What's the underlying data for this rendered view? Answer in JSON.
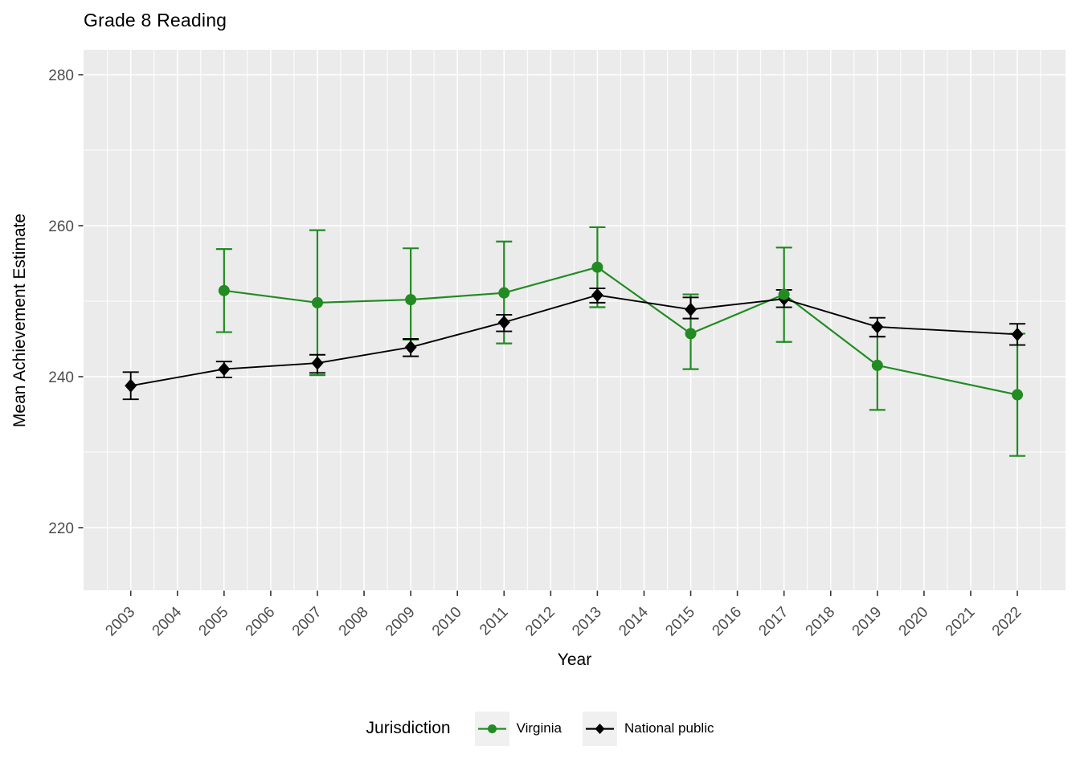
{
  "title": "Grade 8 Reading",
  "colors": {
    "virginia": "#228B22",
    "national_public": "#000000",
    "panel_background": "#EBEBEB",
    "gridline": "#FFFFFF",
    "tick_mark": "#333333",
    "tick_label": "#4D4D4D",
    "legend_key_background": "#F0F0F0"
  },
  "chart_data": {
    "type": "line",
    "title": "Grade 8 Reading",
    "xlabel": "Year",
    "ylabel": "Mean Achievement Estimate",
    "legend_title": "Jurisdiction",
    "legend_position": "bottom",
    "grid": true,
    "error_bars": true,
    "xlim": [
      2002.0,
      2023.0
    ],
    "ylim": [
      211.7,
      283.3
    ],
    "x_ticks": [
      2003,
      2004,
      2005,
      2006,
      2007,
      2008,
      2009,
      2010,
      2011,
      2012,
      2013,
      2014,
      2015,
      2016,
      2017,
      2018,
      2019,
      2020,
      2021,
      2022
    ],
    "y_ticks": [
      220,
      240,
      260,
      280
    ],
    "y_minor_ticks": [
      230,
      250,
      270
    ],
    "series": [
      {
        "name": "Virginia",
        "color": "#228B22",
        "marker": "circle",
        "points": [
          {
            "year": 2005,
            "value": 251.4,
            "ci": [
              245.9,
              256.9
            ]
          },
          {
            "year": 2007,
            "value": 249.8,
            "ci": [
              240.2,
              259.4
            ]
          },
          {
            "year": 2009,
            "value": 250.2,
            "ci": [
              244.9,
              257.0
            ]
          },
          {
            "year": 2011,
            "value": 251.1,
            "ci": [
              244.4,
              257.9
            ]
          },
          {
            "year": 2013,
            "value": 254.5,
            "ci": [
              249.2,
              259.8
            ]
          },
          {
            "year": 2015,
            "value": 245.7,
            "ci": [
              241.0,
              250.9
            ]
          },
          {
            "year": 2017,
            "value": 250.9,
            "ci": [
              244.6,
              257.1
            ]
          },
          {
            "year": 2019,
            "value": 241.5,
            "ci": [
              235.6,
              245.3
            ]
          },
          {
            "year": 2022,
            "value": 237.6,
            "ci": [
              229.5,
              245.7
            ]
          }
        ]
      },
      {
        "name": "National public",
        "color": "#000000",
        "marker": "diamond",
        "points": [
          {
            "year": 2003,
            "value": 238.8,
            "ci": [
              237.0,
              240.6
            ]
          },
          {
            "year": 2005,
            "value": 241.0,
            "ci": [
              239.9,
              242.0
            ]
          },
          {
            "year": 2007,
            "value": 241.8,
            "ci": [
              240.5,
              242.9
            ]
          },
          {
            "year": 2009,
            "value": 243.9,
            "ci": [
              242.7,
              245.0
            ]
          },
          {
            "year": 2011,
            "value": 247.2,
            "ci": [
              246.0,
              248.2
            ]
          },
          {
            "year": 2013,
            "value": 250.8,
            "ci": [
              249.8,
              251.7
            ]
          },
          {
            "year": 2015,
            "value": 248.9,
            "ci": [
              247.7,
              250.5
            ]
          },
          {
            "year": 2017,
            "value": 250.3,
            "ci": [
              249.2,
              251.5
            ]
          },
          {
            "year": 2019,
            "value": 246.6,
            "ci": [
              245.3,
              247.8
            ]
          },
          {
            "year": 2022,
            "value": 245.6,
            "ci": [
              244.2,
              247.0
            ]
          }
        ]
      }
    ]
  }
}
